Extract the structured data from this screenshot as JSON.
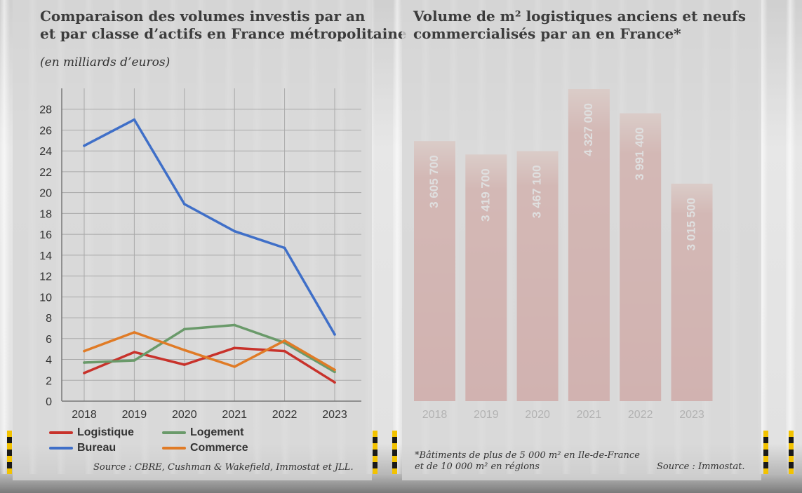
{
  "left": {
    "title_line1": "Comparaison des volumes investis par an",
    "title_line2": "et par classe d’actifs en France métropolitaine",
    "unit": "(en milliards d’euros)",
    "source": "Source : CBRE, Cushman & Wakefield, Immostat et JLL."
  },
  "right": {
    "title_line1": "Volume de m² logistiques anciens et neufs",
    "title_line2": "commercialisés par an en France*",
    "footnote_line1": "*Bâtiments de plus de 5 000 m² en Ile-de-France",
    "footnote_line2": "et de 10 000 m² en régions",
    "source": "Source : Immostat."
  },
  "colors": {
    "Logistique": "#c8322b",
    "Logement": "#6a9a6a",
    "Bureau": "#3f6fc8",
    "Commerce": "#e07b26",
    "bar": "#c0342b"
  },
  "chart_data": [
    {
      "type": "line",
      "x": [
        "2018",
        "2019",
        "2020",
        "2021",
        "2022",
        "2023"
      ],
      "ylim": [
        0,
        30
      ],
      "yticks": [
        0,
        2,
        4,
        6,
        8,
        10,
        12,
        14,
        16,
        18,
        20,
        22,
        24,
        26,
        28
      ],
      "grid": true,
      "legend_position": "bottom",
      "series": [
        {
          "name": "Logistique",
          "values": [
            2.7,
            4.7,
            3.5,
            5.1,
            4.8,
            1.8
          ]
        },
        {
          "name": "Bureau",
          "values": [
            24.5,
            27.0,
            18.9,
            16.3,
            14.7,
            6.4
          ]
        },
        {
          "name": "Logement",
          "values": [
            3.7,
            3.9,
            6.9,
            7.3,
            5.6,
            2.8
          ]
        },
        {
          "name": "Commerce",
          "values": [
            4.8,
            6.6,
            4.9,
            3.3,
            5.8,
            3.0
          ]
        }
      ]
    },
    {
      "type": "bar",
      "categories": [
        "2018",
        "2019",
        "2020",
        "2021",
        "2022",
        "2023"
      ],
      "values": [
        3605700,
        3419700,
        3467100,
        4327000,
        3991400,
        3015500
      ],
      "data_labels": [
        "3 605 700",
        "3 419 700",
        "3 467 100",
        "4 327 000",
        "3 991 400",
        "3 015 500"
      ],
      "ylim": [
        0,
        4327000
      ]
    }
  ]
}
